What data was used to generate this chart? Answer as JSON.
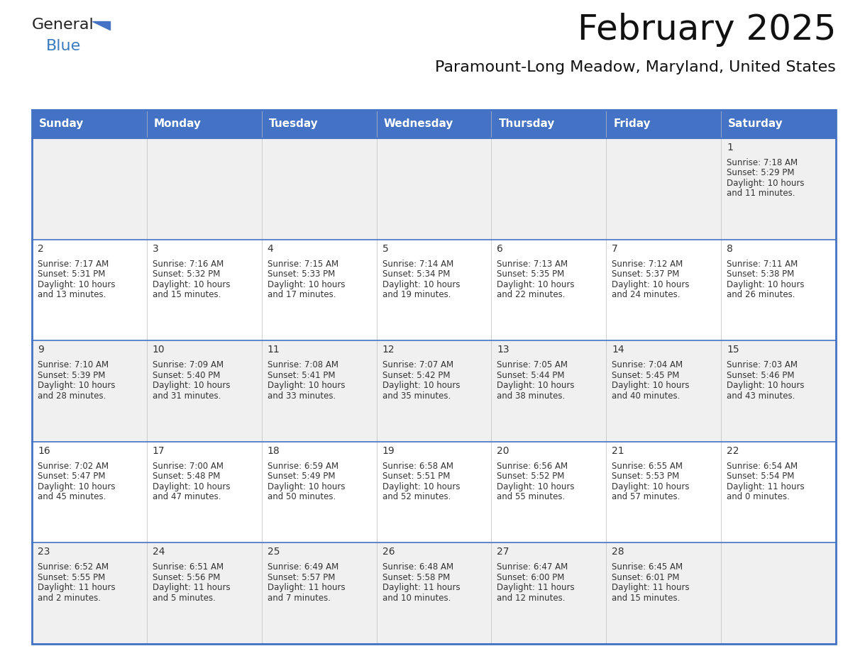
{
  "title": "February 2025",
  "subtitle": "Paramount-Long Meadow, Maryland, United States",
  "header_bg": "#4472C4",
  "header_text": "#FFFFFF",
  "header_days": [
    "Sunday",
    "Monday",
    "Tuesday",
    "Wednesday",
    "Thursday",
    "Friday",
    "Saturday"
  ],
  "row_bg_odd": "#F0F0F0",
  "row_bg_even": "#FFFFFF",
  "border_color": "#4472C4",
  "text_color": "#333333",
  "day_number_color": "#333333",
  "calendar_data": [
    [
      {
        "day": "",
        "sunrise": "",
        "sunset": "",
        "daylight": ""
      },
      {
        "day": "",
        "sunrise": "",
        "sunset": "",
        "daylight": ""
      },
      {
        "day": "",
        "sunrise": "",
        "sunset": "",
        "daylight": ""
      },
      {
        "day": "",
        "sunrise": "",
        "sunset": "",
        "daylight": ""
      },
      {
        "day": "",
        "sunrise": "",
        "sunset": "",
        "daylight": ""
      },
      {
        "day": "",
        "sunrise": "",
        "sunset": "",
        "daylight": ""
      },
      {
        "day": "1",
        "sunrise": "7:18 AM",
        "sunset": "5:29 PM",
        "daylight": "10 hours\nand 11 minutes."
      }
    ],
    [
      {
        "day": "2",
        "sunrise": "7:17 AM",
        "sunset": "5:31 PM",
        "daylight": "10 hours\nand 13 minutes."
      },
      {
        "day": "3",
        "sunrise": "7:16 AM",
        "sunset": "5:32 PM",
        "daylight": "10 hours\nand 15 minutes."
      },
      {
        "day": "4",
        "sunrise": "7:15 AM",
        "sunset": "5:33 PM",
        "daylight": "10 hours\nand 17 minutes."
      },
      {
        "day": "5",
        "sunrise": "7:14 AM",
        "sunset": "5:34 PM",
        "daylight": "10 hours\nand 19 minutes."
      },
      {
        "day": "6",
        "sunrise": "7:13 AM",
        "sunset": "5:35 PM",
        "daylight": "10 hours\nand 22 minutes."
      },
      {
        "day": "7",
        "sunrise": "7:12 AM",
        "sunset": "5:37 PM",
        "daylight": "10 hours\nand 24 minutes."
      },
      {
        "day": "8",
        "sunrise": "7:11 AM",
        "sunset": "5:38 PM",
        "daylight": "10 hours\nand 26 minutes."
      }
    ],
    [
      {
        "day": "9",
        "sunrise": "7:10 AM",
        "sunset": "5:39 PM",
        "daylight": "10 hours\nand 28 minutes."
      },
      {
        "day": "10",
        "sunrise": "7:09 AM",
        "sunset": "5:40 PM",
        "daylight": "10 hours\nand 31 minutes."
      },
      {
        "day": "11",
        "sunrise": "7:08 AM",
        "sunset": "5:41 PM",
        "daylight": "10 hours\nand 33 minutes."
      },
      {
        "day": "12",
        "sunrise": "7:07 AM",
        "sunset": "5:42 PM",
        "daylight": "10 hours\nand 35 minutes."
      },
      {
        "day": "13",
        "sunrise": "7:05 AM",
        "sunset": "5:44 PM",
        "daylight": "10 hours\nand 38 minutes."
      },
      {
        "day": "14",
        "sunrise": "7:04 AM",
        "sunset": "5:45 PM",
        "daylight": "10 hours\nand 40 minutes."
      },
      {
        "day": "15",
        "sunrise": "7:03 AM",
        "sunset": "5:46 PM",
        "daylight": "10 hours\nand 43 minutes."
      }
    ],
    [
      {
        "day": "16",
        "sunrise": "7:02 AM",
        "sunset": "5:47 PM",
        "daylight": "10 hours\nand 45 minutes."
      },
      {
        "day": "17",
        "sunrise": "7:00 AM",
        "sunset": "5:48 PM",
        "daylight": "10 hours\nand 47 minutes."
      },
      {
        "day": "18",
        "sunrise": "6:59 AM",
        "sunset": "5:49 PM",
        "daylight": "10 hours\nand 50 minutes."
      },
      {
        "day": "19",
        "sunrise": "6:58 AM",
        "sunset": "5:51 PM",
        "daylight": "10 hours\nand 52 minutes."
      },
      {
        "day": "20",
        "sunrise": "6:56 AM",
        "sunset": "5:52 PM",
        "daylight": "10 hours\nand 55 minutes."
      },
      {
        "day": "21",
        "sunrise": "6:55 AM",
        "sunset": "5:53 PM",
        "daylight": "10 hours\nand 57 minutes."
      },
      {
        "day": "22",
        "sunrise": "6:54 AM",
        "sunset": "5:54 PM",
        "daylight": "11 hours\nand 0 minutes."
      }
    ],
    [
      {
        "day": "23",
        "sunrise": "6:52 AM",
        "sunset": "5:55 PM",
        "daylight": "11 hours\nand 2 minutes."
      },
      {
        "day": "24",
        "sunrise": "6:51 AM",
        "sunset": "5:56 PM",
        "daylight": "11 hours\nand 5 minutes."
      },
      {
        "day": "25",
        "sunrise": "6:49 AM",
        "sunset": "5:57 PM",
        "daylight": "11 hours\nand 7 minutes."
      },
      {
        "day": "26",
        "sunrise": "6:48 AM",
        "sunset": "5:58 PM",
        "daylight": "11 hours\nand 10 minutes."
      },
      {
        "day": "27",
        "sunrise": "6:47 AM",
        "sunset": "6:00 PM",
        "daylight": "11 hours\nand 12 minutes."
      },
      {
        "day": "28",
        "sunrise": "6:45 AM",
        "sunset": "6:01 PM",
        "daylight": "11 hours\nand 15 minutes."
      },
      {
        "day": "",
        "sunrise": "",
        "sunset": "",
        "daylight": ""
      }
    ]
  ],
  "figsize": [
    11.88,
    9.18
  ],
  "dpi": 100,
  "title_fontsize": 36,
  "subtitle_fontsize": 16,
  "header_fontsize": 11,
  "day_num_fontsize": 10,
  "cell_text_fontsize": 8.5
}
